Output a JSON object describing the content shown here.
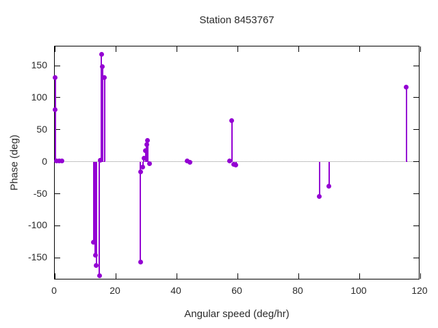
{
  "chart_data": {
    "type": "stem",
    "title": "Station 8453767",
    "xlabel": "Angular speed (deg/hr)",
    "ylabel": "Phase (deg)",
    "xlim": [
      0,
      120
    ],
    "ylim": [
      -185,
      180
    ],
    "xticks": [
      0,
      20,
      40,
      60,
      80,
      100,
      120
    ],
    "yticks": [
      -150,
      -100,
      -50,
      0,
      50,
      100,
      150
    ],
    "grid": false,
    "zero_line": true,
    "legend": "none",
    "series_color": "#9400d3",
    "axis_color": "#000000",
    "zero_line_color": "#8a8a8a",
    "points": [
      [
        0.2,
        131
      ],
      [
        0.2,
        81
      ],
      [
        0.5,
        1
      ],
      [
        1.4,
        1
      ],
      [
        2.3,
        1
      ],
      [
        12.8,
        -126
      ],
      [
        13.3,
        -146
      ],
      [
        13.7,
        -162
      ],
      [
        14.7,
        -178
      ],
      [
        15.0,
        2
      ],
      [
        15.3,
        168
      ],
      [
        15.7,
        149
      ],
      [
        16.4,
        131
      ],
      [
        28.1,
        -157
      ],
      [
        28.2,
        -16
      ],
      [
        28.9,
        -8
      ],
      [
        29.3,
        6
      ],
      [
        29.8,
        17
      ],
      [
        30.2,
        27
      ],
      [
        30.5,
        33
      ],
      [
        31.2,
        -3
      ],
      [
        43.5,
        1
      ],
      [
        44.3,
        -1
      ],
      [
        57.5,
        1
      ],
      [
        58.2,
        64
      ],
      [
        58.8,
        -4
      ],
      [
        59.5,
        -5
      ],
      [
        86.9,
        -54
      ],
      [
        90.1,
        -38
      ],
      [
        115.5,
        117
      ]
    ]
  }
}
